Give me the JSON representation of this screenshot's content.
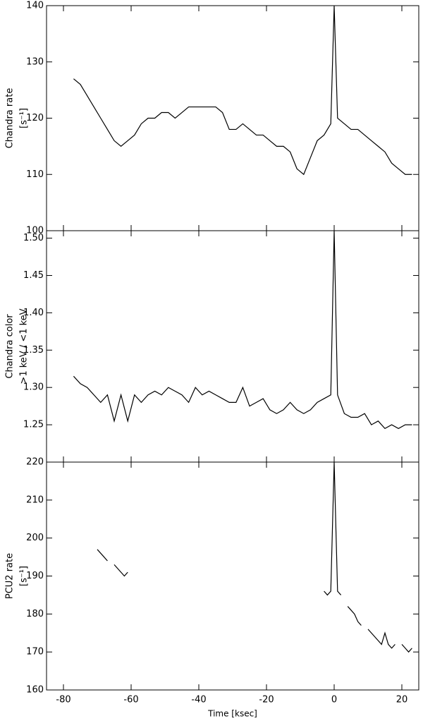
{
  "chart_data": [
    {
      "type": "line",
      "ylabel": [
        "Chandra rate",
        "[s⁻¹]"
      ],
      "xlim": [
        -85,
        25
      ],
      "ylim": [
        100,
        140
      ],
      "yticks": [
        100,
        110,
        120,
        130,
        140
      ],
      "x": [
        -77,
        -75,
        -73,
        -71,
        -69,
        -67,
        -65,
        -63,
        -61,
        -59,
        -57,
        -55,
        -53,
        -51,
        -49,
        -47,
        -45,
        -43,
        -41,
        -39,
        -37,
        -35,
        -33,
        -31,
        -29,
        -27,
        -25,
        -23,
        -21,
        -19,
        -17,
        -15,
        -13,
        -11,
        -9,
        -7,
        -5,
        -3,
        -1,
        0,
        1,
        3,
        5,
        7,
        9,
        11,
        13,
        15,
        17,
        19,
        21,
        23
      ],
      "series": [
        {
          "color": "#000000",
          "values": [
            127,
            126,
            124,
            122,
            120,
            118,
            116,
            115,
            116,
            117,
            119,
            120,
            120,
            121,
            121,
            120,
            121,
            122,
            122,
            122,
            122,
            122,
            121,
            118,
            118,
            119,
            118,
            117,
            117,
            116,
            115,
            115,
            114,
            111,
            110,
            113,
            116,
            117,
            119,
            140,
            120,
            119,
            118,
            118,
            117,
            116,
            115,
            114,
            112,
            111,
            110,
            110
          ]
        }
      ]
    },
    {
      "type": "line",
      "ylabel": [
        "Chandra color",
        ">1 keV / <1 keV"
      ],
      "xlim": [
        -85,
        25
      ],
      "ylim": [
        1.2,
        1.51
      ],
      "yticks": [
        {
          "value": 1.25,
          "label": "1.25"
        },
        {
          "value": 1.3,
          "label": "1.30"
        },
        {
          "value": 1.35,
          "label": "1.35"
        },
        {
          "value": 1.4,
          "label": "1.40"
        },
        {
          "value": 1.45,
          "label": "1.45"
        },
        {
          "value": 1.5,
          "label": "1.50"
        }
      ],
      "x": [
        -77,
        -75,
        -73,
        -71,
        -69,
        -67,
        -65,
        -63,
        -61,
        -59,
        -57,
        -55,
        -53,
        -51,
        -49,
        -47,
        -45,
        -43,
        -41,
        -39,
        -37,
        -35,
        -33,
        -31,
        -29,
        -27,
        -25,
        -23,
        -21,
        -19,
        -17,
        -15,
        -13,
        -11,
        -9,
        -7,
        -5,
        -3,
        -1,
        0,
        1,
        3,
        5,
        7,
        9,
        11,
        13,
        15,
        17,
        19,
        21,
        23
      ],
      "series": [
        {
          "color": "#000000",
          "values": [
            1.315,
            1.305,
            1.3,
            1.29,
            1.28,
            1.29,
            1.255,
            1.29,
            1.255,
            1.29,
            1.28,
            1.29,
            1.295,
            1.29,
            1.3,
            1.295,
            1.29,
            1.28,
            1.3,
            1.29,
            1.295,
            1.29,
            1.285,
            1.28,
            1.28,
            1.3,
            1.275,
            1.28,
            1.285,
            1.27,
            1.265,
            1.27,
            1.28,
            1.27,
            1.265,
            1.27,
            1.28,
            1.285,
            1.29,
            1.51,
            1.29,
            1.265,
            1.26,
            1.26,
            1.265,
            1.25,
            1.255,
            1.245,
            1.25,
            1.245,
            1.25,
            1.25
          ]
        }
      ]
    },
    {
      "type": "line",
      "ylabel": [
        "PCU2 rate",
        "[s⁻¹]"
      ],
      "xlabel": "Time [ksec]",
      "xlim": [
        -85,
        25
      ],
      "ylim": [
        160,
        220
      ],
      "yticks": [
        160,
        170,
        180,
        190,
        200,
        210,
        220
      ],
      "xticks": [
        -80,
        -60,
        -40,
        -20,
        0,
        20
      ],
      "x": [
        -70,
        -69,
        -68,
        -67,
        -66,
        -65,
        -64,
        -63,
        -62,
        -61,
        -50,
        -3,
        -2,
        -1,
        0,
        1,
        2,
        3,
        4,
        5,
        6,
        7,
        8,
        9,
        10,
        11,
        12,
        13,
        14,
        15,
        16,
        17,
        18,
        19,
        20,
        21,
        22,
        23
      ],
      "series": [
        {
          "color": "#000000",
          "values": [
            197,
            196,
            195,
            194,
            null,
            193,
            192,
            191,
            190,
            191,
            null,
            186,
            185,
            186,
            220,
            186,
            185,
            null,
            182,
            181,
            180,
            178,
            177,
            null,
            176,
            175,
            174,
            173,
            172,
            175,
            172,
            171,
            172,
            null,
            172,
            171,
            170,
            171
          ]
        }
      ]
    }
  ]
}
